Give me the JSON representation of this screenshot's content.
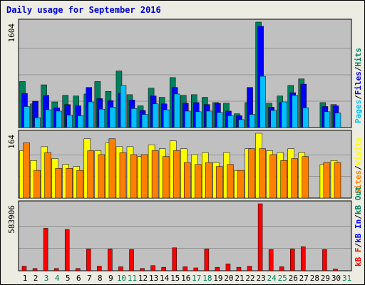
{
  "title": "Daily usage for September 2016",
  "colors": {
    "hits": "#00805c",
    "files": "#0000ff",
    "pages": "#00c0ff",
    "visits": "#ffff00",
    "sites": "#ff8000",
    "kb_f": "#ff0000",
    "kb_in": "#0000ff",
    "kb_out": "#00805c",
    "panel_bg": "#c0c0c0",
    "frame_bg": "#ecece2",
    "weekend_day": "#00805c"
  },
  "chart_data": [
    {
      "type": "bar",
      "panel": "hits-files-pages",
      "ymax_label": "1604",
      "ylim": [
        0,
        1604
      ],
      "legend": [
        {
          "label": "Pages",
          "color": "#00c0ff"
        },
        {
          "label": "/",
          "color": "#000000"
        },
        {
          "label": "Files",
          "color": "#0000ff"
        },
        {
          "label": "/",
          "color": "#000000"
        },
        {
          "label": "Hits",
          "color": "#00805c"
        }
      ],
      "categories": [
        "1",
        "2",
        "3",
        "4",
        "5",
        "6",
        "7",
        "8",
        "9",
        "10",
        "11",
        "12",
        "13",
        "14",
        "15",
        "16",
        "17",
        "18",
        "19",
        "20",
        "21",
        "22",
        "23",
        "24",
        "25",
        "26",
        "27",
        "28",
        "29",
        "30",
        "31"
      ],
      "series": [
        {
          "name": "Hits",
          "color": "#00805c",
          "values": [
            700,
            360,
            650,
            390,
            490,
            480,
            510,
            700,
            550,
            860,
            500,
            330,
            600,
            460,
            760,
            490,
            500,
            460,
            380,
            370,
            210,
            380,
            1604,
            370,
            480,
            640,
            740,
            0,
            380,
            350,
            0
          ]
        },
        {
          "name": "Files",
          "color": "#0000ff",
          "values": [
            520,
            400,
            490,
            300,
            350,
            330,
            610,
            440,
            410,
            520,
            420,
            260,
            480,
            360,
            610,
            370,
            380,
            350,
            370,
            250,
            180,
            610,
            1540,
            310,
            380,
            530,
            660,
            0,
            320,
            330,
            0
          ]
        },
        {
          "name": "Pages",
          "color": "#00c0ff",
          "values": [
            320,
            150,
            270,
            250,
            190,
            180,
            390,
            280,
            310,
            640,
            290,
            200,
            360,
            270,
            510,
            250,
            240,
            250,
            230,
            180,
            120,
            200,
            780,
            260,
            390,
            490,
            300,
            0,
            240,
            220,
            0
          ]
        }
      ]
    },
    {
      "type": "bar",
      "panel": "visits-sites",
      "ymax_label": "164",
      "ylim": [
        0,
        164
      ],
      "legend": [
        {
          "label": "Sites",
          "color": "#ff8000"
        },
        {
          "label": "/",
          "color": "#000000"
        },
        {
          "label": "Visits",
          "color": "#ffff00"
        }
      ],
      "categories": [
        "1",
        "2",
        "3",
        "4",
        "5",
        "6",
        "7",
        "8",
        "9",
        "10",
        "11",
        "12",
        "13",
        "14",
        "15",
        "16",
        "17",
        "18",
        "19",
        "20",
        "21",
        "22",
        "23",
        "24",
        "25",
        "26",
        "27",
        "28",
        "29",
        "30",
        "31"
      ],
      "series": [
        {
          "name": "Visits",
          "color": "#ffff00",
          "values": [
            120,
            95,
            130,
            100,
            85,
            80,
            150,
            120,
            140,
            130,
            130,
            105,
            135,
            125,
            145,
            125,
            110,
            115,
            90,
            115,
            70,
            125,
            164,
            120,
            115,
            125,
            115,
            0,
            85,
            95,
            0
          ]
        },
        {
          "name": "Sites",
          "color": "#ff8000",
          "values": [
            140,
            70,
            115,
            75,
            75,
            70,
            120,
            110,
            150,
            115,
            110,
            110,
            120,
            105,
            120,
            90,
            85,
            90,
            80,
            85,
            70,
            125,
            125,
            110,
            95,
            100,
            105,
            0,
            90,
            90,
            0
          ]
        }
      ]
    },
    {
      "type": "bar",
      "panel": "kbytes",
      "ymax_label": "583906",
      "ylim": [
        0,
        583906
      ],
      "legend": [
        {
          "label": "kB F",
          "color": "#ff0000"
        },
        {
          "label": "/",
          "color": "#000000"
        },
        {
          "label": "kB In",
          "color": "#0000ff"
        },
        {
          "label": "/",
          "color": "#000000"
        },
        {
          "label": "kB Out",
          "color": "#00805c"
        }
      ],
      "categories": [
        "1",
        "2",
        "3",
        "4",
        "5",
        "6",
        "7",
        "8",
        "9",
        "10",
        "11",
        "12",
        "13",
        "14",
        "15",
        "16",
        "17",
        "18",
        "19",
        "20",
        "21",
        "22",
        "23",
        "24",
        "25",
        "26",
        "27",
        "28",
        "29",
        "30",
        "31"
      ],
      "series": [
        {
          "name": "kB F",
          "color": "#ff0000",
          "values": [
            40000,
            20000,
            370000,
            20000,
            360000,
            20000,
            190000,
            40000,
            190000,
            35000,
            185000,
            20000,
            45000,
            30000,
            200000,
            35000,
            25000,
            190000,
            30000,
            60000,
            30000,
            40000,
            583906,
            185000,
            35000,
            190000,
            210000,
            0,
            185000,
            15000,
            0
          ]
        }
      ]
    }
  ],
  "weekend_days": [
    3,
    4,
    10,
    11,
    17,
    18,
    24,
    25,
    31
  ]
}
